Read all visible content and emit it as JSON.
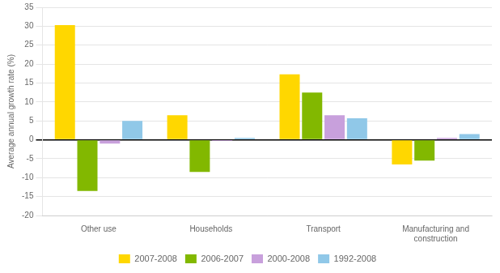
{
  "chart_data": {
    "type": "bar",
    "categories": [
      "Other use",
      "Households",
      "Transport",
      "Manufacturing and\nconstruction"
    ],
    "series": [
      {
        "name": "2007-2008",
        "color": "#FFD700",
        "values": [
          30.3,
          6.5,
          17.3,
          -6.5
        ]
      },
      {
        "name": "2006-2007",
        "color": "#82B800",
        "values": [
          -13.5,
          -8.5,
          12.5,
          -5.5
        ]
      },
      {
        "name": "2000-2008",
        "color": "#C8A0DC",
        "values": [
          -1.0,
          -0.3,
          6.5,
          0.5
        ]
      },
      {
        "name": "1992-2008",
        "color": "#90C8E8",
        "values": [
          5.0,
          0.5,
          5.7,
          1.5
        ]
      }
    ],
    "ylabel": "Average annual growth rate (%)",
    "ylim": [
      -20,
      35
    ],
    "yticks": [
      -20,
      -15,
      -10,
      -5,
      0,
      5,
      10,
      15,
      20,
      25,
      30,
      35
    ],
    "grid": true,
    "legend": "bottom"
  }
}
